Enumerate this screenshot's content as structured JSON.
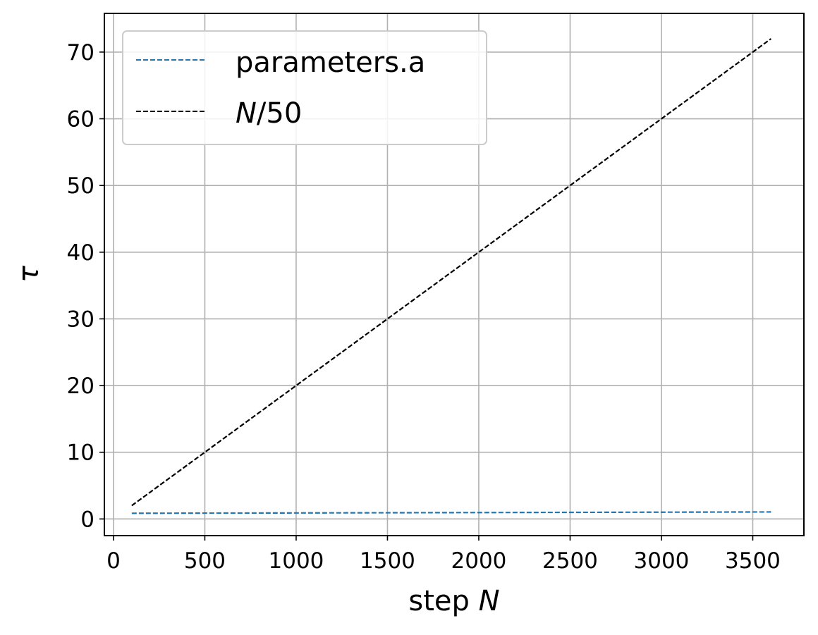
{
  "chart_data": {
    "type": "line",
    "title": "",
    "xlabel": {
      "prefix": "step ",
      "symbol": "N"
    },
    "ylabel": "τ",
    "xlim": [
      -50,
      3780
    ],
    "ylim": [
      -2.5,
      75.8
    ],
    "xticks": [
      0,
      500,
      1000,
      1500,
      2000,
      2500,
      3000,
      3500
    ],
    "yticks": [
      0,
      10,
      20,
      30,
      40,
      50,
      60,
      70
    ],
    "grid": true,
    "legend": {
      "placement": "upper-left",
      "entries": [
        {
          "symbol": "",
          "text": "parameters.a"
        },
        {
          "symbol": "N",
          "text": "/50"
        }
      ]
    },
    "series": [
      {
        "name": "parameters.a",
        "color": "#1f77b4",
        "linestyle": "dashed",
        "x": [
          100,
          3600
        ],
        "y": [
          0.85,
          1.05
        ]
      },
      {
        "name": "N/50",
        "color": "#000000",
        "linestyle": "dashed",
        "x": [
          100,
          3600
        ],
        "y": [
          2,
          72
        ]
      }
    ]
  }
}
